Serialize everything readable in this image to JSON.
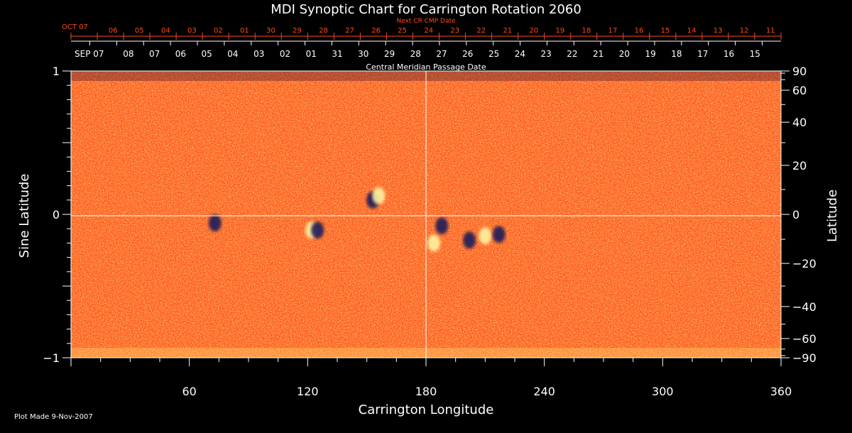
{
  "chart_data": {
    "type": "heatmap",
    "title": "MDI Synoptic Chart for Carrington Rotation 2060",
    "xlabel": "Carrington Longitude",
    "ylabel_left": "Sine Latitude",
    "ylabel_right": "Latitude",
    "xlim": [
      0,
      360
    ],
    "ylim": [
      -1,
      1
    ],
    "x_ticks": [
      60,
      120,
      180,
      240,
      300,
      360
    ],
    "y_ticks_left": [
      {
        "value": 1,
        "label": "1"
      },
      {
        "value": 0,
        "label": "0"
      },
      {
        "value": -1,
        "label": "−1"
      }
    ],
    "y_ticks_right": [
      90,
      60,
      40,
      20,
      0,
      -20,
      -40,
      -60,
      -90
    ],
    "top_axis_label": "Central Meridian Passage Date",
    "top_axis_start_label": "SEP 07",
    "top_axis_dates": [
      "08",
      "07",
      "06",
      "05",
      "04",
      "03",
      "02",
      "01",
      "31",
      "30",
      "29",
      "28",
      "27",
      "26",
      "25",
      "24",
      "23",
      "22",
      "21",
      "20",
      "19",
      "18",
      "17",
      "16",
      "15"
    ],
    "next_axis_label": "Next CR CMP Date",
    "next_axis_start_label": "OCT 07",
    "next_axis_dates": [
      "06",
      "05",
      "04",
      "03",
      "02",
      "01",
      "30",
      "29",
      "28",
      "27",
      "26",
      "25",
      "24",
      "23",
      "22",
      "21",
      "20",
      "19",
      "18",
      "17",
      "16",
      "15",
      "14",
      "13",
      "12",
      "11"
    ],
    "colors": {
      "background": "#ff5a1a",
      "positive": "#fff3a0",
      "negative": "#1a1a5a",
      "grid": "#ffffff",
      "next_axis": "#ff4a1a"
    },
    "features": [
      {
        "type": "negative",
        "lon": 73,
        "sinlat": -0.06
      },
      {
        "type": "positive",
        "lon": 122,
        "sinlat": -0.11
      },
      {
        "type": "negative",
        "lon": 125,
        "sinlat": -0.11
      },
      {
        "type": "negative",
        "lon": 153,
        "sinlat": 0.1
      },
      {
        "type": "positive",
        "lon": 156,
        "sinlat": 0.13
      },
      {
        "type": "positive",
        "lon": 184,
        "sinlat": -0.2
      },
      {
        "type": "negative",
        "lon": 188,
        "sinlat": -0.08
      },
      {
        "type": "negative",
        "lon": 202,
        "sinlat": -0.18
      },
      {
        "type": "positive",
        "lon": 210,
        "sinlat": -0.15
      },
      {
        "type": "negative",
        "lon": 217,
        "sinlat": -0.14
      }
    ],
    "footnote": "Plot Made  9-Nov-2007"
  }
}
